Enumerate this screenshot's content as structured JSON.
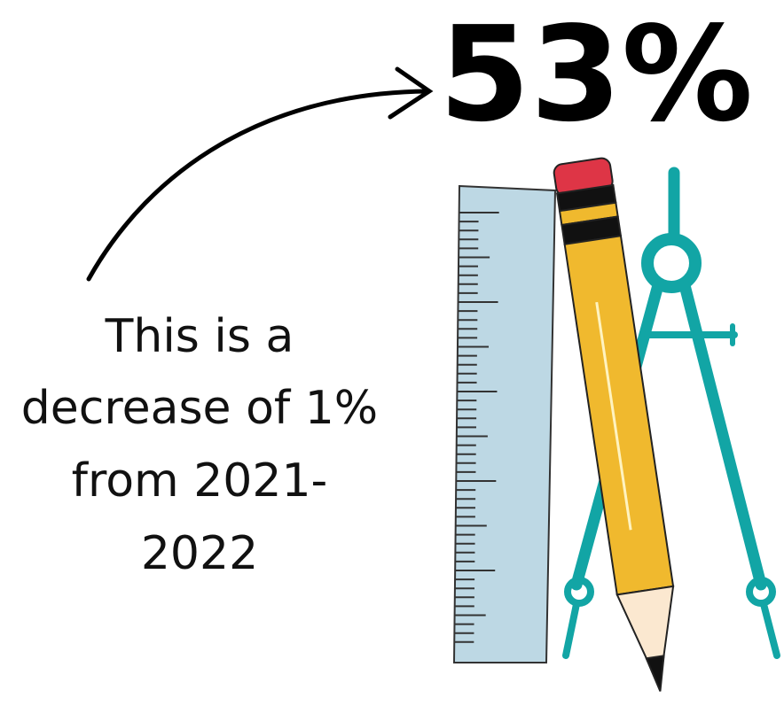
{
  "headline": "53%",
  "caption": {
    "lines": [
      "This is a",
      "decrease of 1%",
      "from 2021-",
      "2022"
    ]
  }
}
